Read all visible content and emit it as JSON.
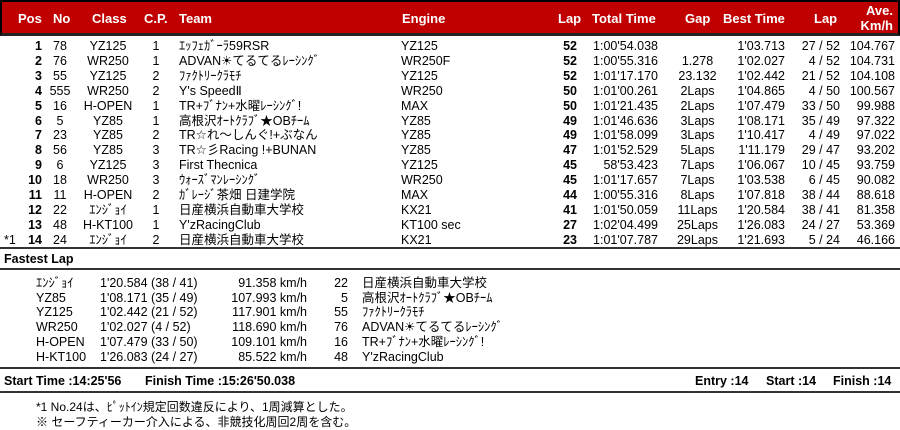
{
  "header": {
    "pos": "Pos",
    "no": "No",
    "class": "Class",
    "cp": "C.P.",
    "team": "Team",
    "engine": "Engine",
    "lap": "Lap",
    "total": "Total Time",
    "gap": "Gap",
    "best": "Best Time",
    "best_lap": "Lap",
    "ave1": "Ave.",
    "ave2": "Km/h"
  },
  "colors": {
    "header_bg": "#c00000"
  },
  "rows": [
    {
      "mark": "",
      "pos": "1",
      "no": "78",
      "class": "YZ125",
      "cp": "1",
      "team": "ｴｯﾌｪｶﾞｰﾗ59RSR",
      "engine": "YZ125",
      "lap": "52",
      "total": "1:00'54.038",
      "gap": "",
      "best": "1'03.713",
      "best_lap": "27 / 52",
      "ave": "104.767"
    },
    {
      "mark": "",
      "pos": "2",
      "no": "76",
      "class": "WR250",
      "cp": "1",
      "team": "ADVAN☀てるてるﾚｰｼﾝｸﾞ",
      "engine": "WR250F",
      "lap": "52",
      "total": "1:00'55.316",
      "gap": "1.278",
      "best": "1'02.027",
      "best_lap": "4 / 52",
      "ave": "104.731"
    },
    {
      "mark": "",
      "pos": "3",
      "no": "55",
      "class": "YZ125",
      "cp": "2",
      "team": "ﾌｧｸﾄﾘｰｸﾗﾓﾁ",
      "engine": "YZ125",
      "lap": "52",
      "total": "1:01'17.170",
      "gap": "23.132",
      "best": "1'02.442",
      "best_lap": "21 / 52",
      "ave": "104.108"
    },
    {
      "mark": "",
      "pos": "4",
      "no": "555",
      "class": "WR250",
      "cp": "2",
      "team": "Y's SpeedⅡ",
      "engine": "WR250",
      "lap": "50",
      "total": "1:01'00.261",
      "gap": "2Laps",
      "best": "1'04.865",
      "best_lap": "4 / 50",
      "ave": "100.567"
    },
    {
      "mark": "",
      "pos": "5",
      "no": "16",
      "class": "H-OPEN",
      "cp": "1",
      "team": "TR+ﾌﾞﾅﾝ+水曜ﾚｰｼﾝｸﾞ!",
      "engine": "MAX",
      "lap": "50",
      "total": "1:01'21.435",
      "gap": "2Laps",
      "best": "1'07.479",
      "best_lap": "33 / 50",
      "ave": "99.988"
    },
    {
      "mark": "",
      "pos": "6",
      "no": "5",
      "class": "YZ85",
      "cp": "1",
      "team": "高根沢ｵｰﾄｸﾗﾌﾞ★OBﾁｰﾑ",
      "engine": "YZ85",
      "lap": "49",
      "total": "1:01'46.636",
      "gap": "3Laps",
      "best": "1'08.171",
      "best_lap": "35 / 49",
      "ave": "97.322"
    },
    {
      "mark": "",
      "pos": "7",
      "no": "23",
      "class": "YZ85",
      "cp": "2",
      "team": "TR☆れ～しんぐ!+ぶなん",
      "engine": "YZ85",
      "lap": "49",
      "total": "1:01'58.099",
      "gap": "3Laps",
      "best": "1'10.417",
      "best_lap": "4 / 49",
      "ave": "97.022"
    },
    {
      "mark": "",
      "pos": "8",
      "no": "56",
      "class": "YZ85",
      "cp": "3",
      "team": "TR☆彡Racing !+BUNAN",
      "engine": "YZ85",
      "lap": "47",
      "total": "1:01'52.529",
      "gap": "5Laps",
      "best": "1'11.179",
      "best_lap": "29 / 47",
      "ave": "93.202"
    },
    {
      "mark": "",
      "pos": "9",
      "no": "6",
      "class": "YZ125",
      "cp": "3",
      "team": "First Thecnica",
      "engine": "YZ125",
      "lap": "45",
      "total": "58'53.423",
      "gap": "7Laps",
      "best": "1'06.067",
      "best_lap": "10 / 45",
      "ave": "93.759"
    },
    {
      "mark": "",
      "pos": "10",
      "no": "18",
      "class": "WR250",
      "cp": "3",
      "team": "ｳｫｰｽﾞﾏﾝﾚｰｼﾝｸﾞ",
      "engine": "WR250",
      "lap": "45",
      "total": "1:01'17.657",
      "gap": "7Laps",
      "best": "1'03.538",
      "best_lap": "6 / 45",
      "ave": "90.082"
    },
    {
      "mark": "",
      "pos": "11",
      "no": "11",
      "class": "H-OPEN",
      "cp": "2",
      "team": "ｶﾞﾚｰｼﾞ茶畑 日建学院",
      "engine": "MAX",
      "lap": "44",
      "total": "1:00'55.316",
      "gap": "8Laps",
      "best": "1'07.818",
      "best_lap": "38 / 44",
      "ave": "88.618"
    },
    {
      "mark": "",
      "pos": "12",
      "no": "22",
      "class": "ｴﾝｼﾞｮｲ",
      "cp": "1",
      "team": "日産横浜自動車大学校",
      "engine": "KX21",
      "lap": "41",
      "total": "1:01'50.059",
      "gap": "11Laps",
      "best": "1'20.584",
      "best_lap": "38 / 41",
      "ave": "81.358"
    },
    {
      "mark": "",
      "pos": "13",
      "no": "48",
      "class": "H-KT100",
      "cp": "1",
      "team": "Y'zRacingClub",
      "engine": "KT100 sec",
      "lap": "27",
      "total": "1:02'04.499",
      "gap": "25Laps",
      "best": "1'26.083",
      "best_lap": "24 / 27",
      "ave": "53.369"
    },
    {
      "mark": "*1",
      "pos": "14",
      "no": "24",
      "class": "ｴﾝｼﾞｮｲ",
      "cp": "2",
      "team": "日産横浜自動車大学校",
      "engine": "KX21",
      "lap": "23",
      "total": "1:01'07.787",
      "gap": "29Laps",
      "best": "1'21.693",
      "best_lap": "5 / 24",
      "ave": "46.166"
    }
  ],
  "fastest": {
    "title": "Fastest Lap",
    "rows": [
      {
        "class": "ｴﾝｼﾞｮｲ",
        "time": "1'20.584 (38 / 41)",
        "speed": "91.358 km/h",
        "no": "22",
        "team": "日産横浜自動車大学校"
      },
      {
        "class": "YZ85",
        "time": "1'08.171 (35 / 49)",
        "speed": "107.993 km/h",
        "no": "5",
        "team": "高根沢ｵｰﾄｸﾗﾌﾞ★OBﾁｰﾑ"
      },
      {
        "class": "YZ125",
        "time": "1'02.442 (21 / 52)",
        "speed": "117.901 km/h",
        "no": "55",
        "team": "ﾌｧｸﾄﾘｰｸﾗﾓﾁ"
      },
      {
        "class": "WR250",
        "time": "1'02.027 (4 / 52)",
        "speed": "118.690 km/h",
        "no": "76",
        "team": "ADVAN☀てるてるﾚｰｼﾝｸﾞ"
      },
      {
        "class": "H-OPEN",
        "time": "1'07.479 (33 / 50)",
        "speed": "109.101 km/h",
        "no": "16",
        "team": "TR+ﾌﾞﾅﾝ+水曜ﾚｰｼﾝｸﾞ!"
      },
      {
        "class": "H-KT100",
        "time": "1'26.083 (24 / 27)",
        "speed": "85.522 km/h",
        "no": "48",
        "team": "Y'zRacingClub"
      }
    ]
  },
  "summary": {
    "start_time": "Start Time :14:25'56",
    "finish_time": "Finish Time :15:26'50.038",
    "entry": "Entry :14",
    "start": "Start :14",
    "finish": "Finish :14"
  },
  "notes": [
    "*1 No.24は、ﾋﾟｯﾄｲﾝ規定回数違反により、1周減算とした。",
    "※ セーフティーカー介入による、非競技化周回2周を含む。"
  ]
}
